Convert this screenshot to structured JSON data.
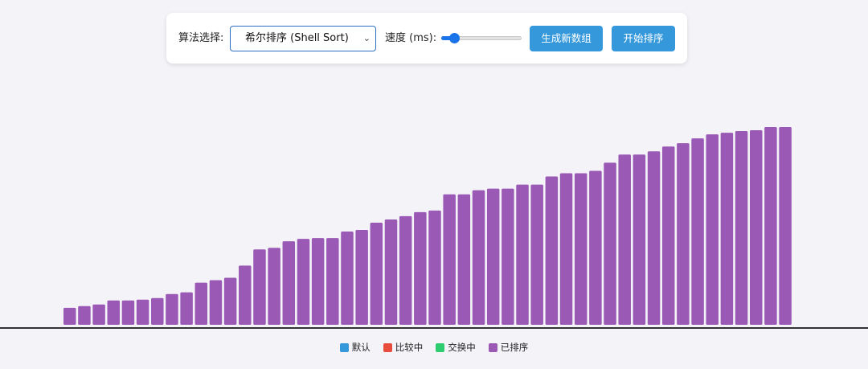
{
  "controls": {
    "algo_label": "算法选择:",
    "algo_selected": "希尔排序 (Shell Sort)",
    "speed_label": "速度 (ms):",
    "speed_fraction": 0.16,
    "generate_label": "生成新数组",
    "start_label": "开始排序"
  },
  "colors": {
    "default": "#3498db",
    "compare": "#e74c3c",
    "swap": "#2ecc71",
    "sorted": "#9b59b6",
    "button": "#3498db"
  },
  "legend": [
    {
      "label": "默认",
      "color": "#3498db"
    },
    {
      "label": "比较中",
      "color": "#e74c3c"
    },
    {
      "label": "交换中",
      "color": "#2ecc71"
    },
    {
      "label": "已排序",
      "color": "#9b59b6"
    }
  ],
  "chart_data": {
    "type": "bar",
    "state": "sorted",
    "ylim": [
      0,
      245
    ],
    "values": [
      21,
      23,
      25,
      30,
      30,
      31,
      33,
      38,
      40,
      52,
      55,
      58,
      73,
      93,
      95,
      103,
      106,
      107,
      107,
      115,
      117,
      126,
      130,
      134,
      139,
      141,
      161,
      161,
      166,
      168,
      168,
      173,
      173,
      183,
      187,
      187,
      190,
      200,
      210,
      210,
      214,
      220,
      224,
      230,
      235,
      237,
      239,
      240,
      244,
      244
    ]
  }
}
